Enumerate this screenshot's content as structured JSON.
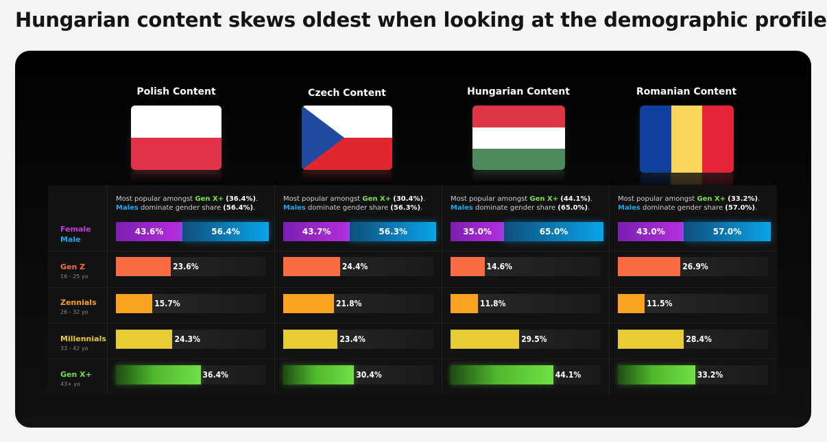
{
  "title": "Hungarian content skews oldest when looking at the demographic profile",
  "row_labels": [
    {
      "key": "gender",
      "label_female": "Female",
      "label_male": "Male"
    },
    {
      "key": "genz",
      "label": "Gen Z",
      "sub": "16 - 25 yo",
      "color": "#f86b43"
    },
    {
      "key": "zennials",
      "label": "Zennials",
      "sub": "26 - 32 yo",
      "color": "#f9a320"
    },
    {
      "key": "millennials",
      "label": "Millennials",
      "sub": "33 - 42 yo",
      "color": "#e8cc35"
    },
    {
      "key": "genx",
      "label": "Gen X+",
      "sub": "43+ yo",
      "color": "#72df45"
    }
  ],
  "colors": {
    "female": "#c23ad8",
    "male": "#1aa7ee",
    "genz": "#f86b43",
    "zennials": "#f9a320",
    "millennials": "#e8cc35",
    "genx": "#72df45",
    "panel": "#000000",
    "page": "#f4f4f6"
  },
  "note_text": {
    "popular_prefix": "Most popular amongst ",
    "males": "Males",
    "dominate": " dominate gender share "
  },
  "columns": [
    {
      "title": "Polish Content",
      "flag": "poland-flag-icon",
      "note_gen": "Gen X+",
      "note_gen_value": "(36.4%)",
      "note_male_value": "(56.4%)"
    },
    {
      "title": "Czech  Content",
      "flag": "czech-flag-icon",
      "note_gen": "Gen X+",
      "note_gen_value": "(30.4%)",
      "note_male_value": "(56.3%)"
    },
    {
      "title": "Hungarian Content",
      "flag": "hungary-flag-icon",
      "note_gen": "Gen X+",
      "note_gen_value": "(44.1%)",
      "note_male_value": "(65.0%)"
    },
    {
      "title": "Romanian Content",
      "flag": "romania-flag-icon",
      "note_gen": "Gen X+",
      "note_gen_value": "(33.2%)",
      "note_male_value": "(57.0%)"
    }
  ],
  "chart_data": {
    "type": "bar",
    "categories": [
      "Polish Content",
      "Czech  Content",
      "Hungarian Content",
      "Romanian Content"
    ],
    "gender": {
      "female": [
        43.6,
        43.7,
        35.0,
        43.0
      ],
      "male": [
        56.4,
        56.3,
        65.0,
        57.0
      ],
      "labels_female": [
        "43.6%",
        "43.7%",
        "35.0%",
        "43.0%"
      ],
      "labels_male": [
        "56.4%",
        "56.3%",
        "65.0%",
        "57.0%"
      ]
    },
    "series": [
      {
        "name": "Gen Z",
        "values": [
          23.6,
          24.4,
          14.6,
          26.9
        ],
        "labels": [
          "23.6%",
          "24.4%",
          "14.6%",
          "26.9%"
        ]
      },
      {
        "name": "Zennials",
        "values": [
          15.7,
          21.8,
          11.8,
          11.5
        ],
        "labels": [
          "15.7%",
          "21.8%",
          "11.8%",
          "11.5%"
        ]
      },
      {
        "name": "Millennials",
        "values": [
          24.3,
          23.4,
          29.5,
          28.4
        ],
        "labels": [
          "24.3%",
          "23.4%",
          "29.5%",
          "28.4%"
        ]
      },
      {
        "name": "Gen X+",
        "values": [
          36.4,
          30.4,
          44.1,
          33.2
        ],
        "labels": [
          "36.4%",
          "30.4%",
          "44.1%",
          "33.2%"
        ]
      }
    ],
    "ylim": [
      0,
      100
    ]
  }
}
